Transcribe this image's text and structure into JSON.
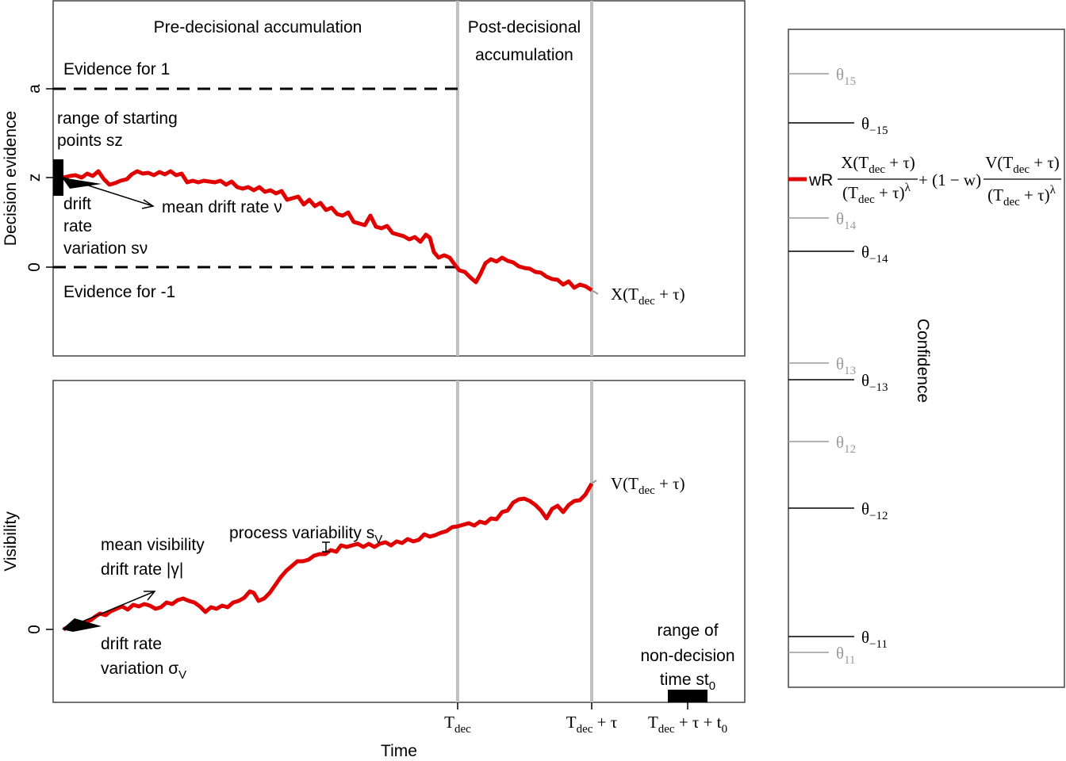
{
  "panels": {
    "top": {
      "region_pre": "Pre-decisional accumulation",
      "region_post_line1": "Post-decisional",
      "region_post_line2": "accumulation",
      "evidence_for_1": "Evidence for 1",
      "evidence_for_minus1": "Evidence for -1",
      "start_range_line1": "range of starting",
      "start_range_line2": "points sz",
      "mean_drift": "mean drift rate ν",
      "drift_var_line1": "drift",
      "drift_var_line2": "rate",
      "drift_var_line3": "variation sν",
      "ylabel": "Decision evidence",
      "yticks": [
        "a",
        "z",
        "0"
      ],
      "end_label": {
        "main": "X(T",
        "sub": "dec",
        "tail": " + τ)"
      }
    },
    "bottom": {
      "mean_vis_line1": "mean visibility",
      "mean_vis_line2": "drift rate |γ|",
      "process_var": {
        "main": "process variability s",
        "sub": "V"
      },
      "drift_var_line1": "drift rate",
      "drift_var_line2": {
        "main": "variation σ",
        "sub": "V"
      },
      "ylabel": "Visibility",
      "yticks": [
        "0"
      ],
      "end_label": {
        "main": "V(T",
        "sub": "dec",
        "tail": " + τ)"
      },
      "nondec_line1": "range of",
      "nondec_line2": "non-decision",
      "nondec_line3": {
        "main": "time st",
        "sub": "0"
      }
    }
  },
  "xaxis": {
    "label": "Time",
    "ticks": [
      {
        "main": "T",
        "sub": "dec",
        "tail": ""
      },
      {
        "main": "T",
        "sub": "dec",
        "tail": " + τ"
      },
      {
        "main": "T",
        "sub": "dec",
        "tail": " + τ + t",
        "sub2": "0"
      }
    ]
  },
  "confidence": {
    "label": "Confidence",
    "thresholds": [
      {
        "name": "θ",
        "sub": "15",
        "color": "#9a9a9a"
      },
      {
        "name": "θ",
        "sub": "−15",
        "color": "#000000"
      },
      {
        "name": "θ",
        "sub": "14",
        "color": "#9a9a9a"
      },
      {
        "name": "θ",
        "sub": "−14",
        "color": "#000000"
      },
      {
        "name": "θ",
        "sub": "13",
        "color": "#9a9a9a"
      },
      {
        "name": "θ",
        "sub": "−13",
        "color": "#000000"
      },
      {
        "name": "θ",
        "sub": "12",
        "color": "#9a9a9a"
      },
      {
        "name": "θ",
        "sub": "−12",
        "color": "#000000"
      },
      {
        "name": "θ",
        "sub": "−11",
        "color": "#000000"
      },
      {
        "name": "θ",
        "sub": "11",
        "color": "#9a9a9a"
      }
    ],
    "formula": {
      "prefix": "wR",
      "num1": {
        "main": "X(T",
        "sub": "dec",
        "tail": " + τ)"
      },
      "den1": {
        "main": "(T",
        "sub": "dec",
        "tail": " + τ)",
        "sup": "λ"
      },
      "mid": "+ (1 − w)",
      "num2": {
        "main": "V(T",
        "sub": "dec",
        "tail": " + τ)"
      },
      "den2": {
        "main": "(T",
        "sub": "dec",
        "tail": " + τ)",
        "sup": "λ"
      }
    }
  },
  "colors": {
    "path": "#e00000",
    "guide": "#c0c0c0",
    "grey": "#9a9a9a"
  }
}
